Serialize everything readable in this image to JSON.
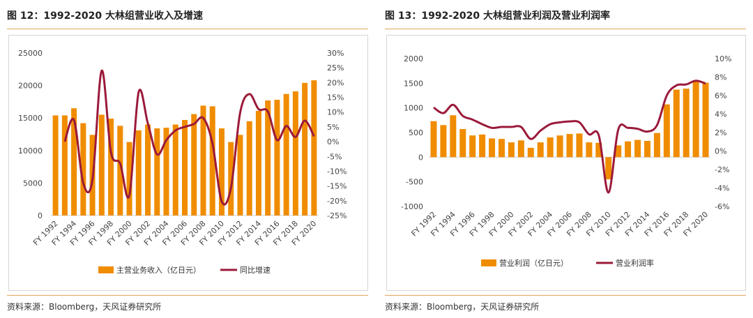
{
  "figures": [
    {
      "title": "图 12：1992-2020 大林组营业收入及增速",
      "source": "资料来源：Bloomberg，天风证券研究所"
    },
    {
      "title": "图 13：1992-2020 大林组营业利润及营业利润率",
      "source": "资料来源：Bloomberg，天风证券研究所"
    }
  ],
  "colors": {
    "bar": "#f08c00",
    "line": "#9b1a3a",
    "rule": "#e3a35a"
  },
  "chart_data": [
    {
      "type": "bar",
      "combo": "bar+line",
      "title": "",
      "categories": [
        "FY 1992",
        "FY 1993",
        "FY 1994",
        "FY 1995",
        "FY 1996",
        "FY 1997",
        "FY 1998",
        "FY 1999",
        "FY 2000",
        "FY 2001",
        "FY 2002",
        "FY 2003",
        "FY 2004",
        "FY 2005",
        "FY 2006",
        "FY 2007",
        "FY 2008",
        "FY 2009",
        "FY 2010",
        "FY 2011",
        "FY 2012",
        "FY 2013",
        "FY 2014",
        "FY 2015",
        "FY 2016",
        "FY 2017",
        "FY 2018",
        "FY 2019",
        "FY 2020"
      ],
      "x_tick_labels": [
        "FY 1992",
        "FY 1994",
        "FY 1996",
        "FY 1998",
        "FY 2000",
        "FY 2002",
        "FY 2004",
        "FY 2006",
        "FY 2008",
        "FY 2010",
        "FY 2012",
        "FY 2014",
        "FY 2016",
        "FY 2018",
        "FY 2020"
      ],
      "series": [
        {
          "name": "主营业务收入（亿日元）",
          "axis": "left",
          "chart": "bar",
          "values": [
            15400,
            15400,
            16500,
            14200,
            12400,
            15500,
            14900,
            13800,
            11300,
            13100,
            14000,
            13400,
            13500,
            14000,
            14700,
            15600,
            16900,
            16800,
            13400,
            11300,
            12400,
            14500,
            16100,
            17700,
            17800,
            18700,
            19100,
            20400,
            20800
          ]
        },
        {
          "name": "同比增速",
          "axis": "right",
          "chart": "line",
          "values": [
            null,
            0.0,
            7.3,
            -14.0,
            -13.0,
            24.0,
            -3.5,
            -7.4,
            -18.2,
            16.7,
            6.2,
            -4.3,
            0.5,
            3.8,
            5.0,
            6.0,
            8.0,
            -0.6,
            -20.2,
            -15.7,
            9.8,
            16.1,
            11.0,
            10.2,
            0.5,
            5.3,
            1.6,
            7.1,
            1.8
          ]
        }
      ],
      "y_left": {
        "ylim": [
          0,
          25000
        ],
        "ticks": [
          0,
          5000,
          10000,
          15000,
          20000,
          25000
        ]
      },
      "y_right": {
        "ylim": [
          -25,
          30
        ],
        "ticks": [
          "30%",
          "25%",
          "20%",
          "15%",
          "10%",
          "5%",
          "0%",
          "-5%",
          "-10%",
          "-15%",
          "-20%",
          "-25%"
        ]
      },
      "legend": [
        "主营业务收入（亿日元）",
        "同比增速"
      ],
      "legend_position": "bottom",
      "grid": false
    },
    {
      "type": "bar",
      "combo": "bar+line",
      "title": "",
      "categories": [
        "FY 1992",
        "FY 1993",
        "FY 1994",
        "FY 1995",
        "FY 1996",
        "FY 1997",
        "FY 1998",
        "FY 1999",
        "FY 2000",
        "FY 2001",
        "FY 2002",
        "FY 2003",
        "FY 2004",
        "FY 2005",
        "FY 2006",
        "FY 2007",
        "FY 2008",
        "FY 2009",
        "FY 2010",
        "FY 2011",
        "FY 2012",
        "FY 2013",
        "FY 2014",
        "FY 2015",
        "FY 2016",
        "FY 2017",
        "FY 2018",
        "FY 2019",
        "FY 2020"
      ],
      "x_tick_labels": [
        "FY 1992",
        "FY 1994",
        "FY 1996",
        "FY 1998",
        "FY 2000",
        "FY 2002",
        "FY 2004",
        "FY 2006",
        "FY 2008",
        "FY 2010",
        "FY 2012",
        "FY 2014",
        "FY 2016",
        "FY 2018",
        "FY 2020"
      ],
      "series": [
        {
          "name": "营业利润（亿日元）",
          "axis": "left",
          "chart": "bar",
          "values": [
            730,
            650,
            850,
            570,
            440,
            460,
            380,
            370,
            300,
            340,
            190,
            300,
            400,
            440,
            470,
            480,
            300,
            290,
            -450,
            240,
            320,
            350,
            330,
            490,
            1070,
            1370,
            1390,
            1550,
            1510
          ]
        },
        {
          "name": "营业利润率",
          "axis": "right",
          "chart": "line",
          "values": [
            4.7,
            4.1,
            5.0,
            3.8,
            3.4,
            2.9,
            2.5,
            2.6,
            2.6,
            2.6,
            1.3,
            2.2,
            2.9,
            3.1,
            3.2,
            3.1,
            1.8,
            1.7,
            -4.5,
            2.3,
            2.5,
            2.4,
            2.1,
            2.8,
            6.0,
            7.1,
            7.2,
            7.6,
            7.3
          ]
        }
      ],
      "y_left": {
        "ylim": [
          -1000,
          2000
        ],
        "ticks": [
          2000,
          1500,
          1000,
          500,
          0,
          -500,
          -1000
        ]
      },
      "y_right": {
        "ylim": [
          -6,
          10
        ],
        "ticks": [
          "10%",
          "8%",
          "6%",
          "4%",
          "2%",
          "0%",
          "-2%",
          "-4%",
          "-6%"
        ]
      },
      "legend": [
        "营业利润（亿日元）",
        "营业利润率"
      ],
      "legend_position": "bottom",
      "grid": false
    }
  ]
}
